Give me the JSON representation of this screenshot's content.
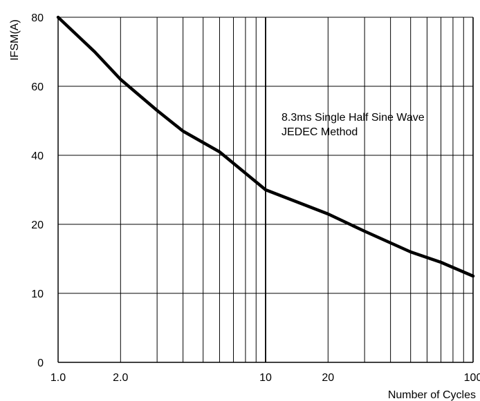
{
  "chart_data": {
    "type": "line",
    "x_scale": "log",
    "y_ticks": [
      {
        "label": "80",
        "value": 80
      },
      {
        "label": "60",
        "value": 60
      },
      {
        "label": "40",
        "value": 40
      },
      {
        "label": "20",
        "value": 20
      },
      {
        "label": "10",
        "value": 10
      },
      {
        "label": "0",
        "value": 0
      }
    ],
    "x_ticks": [
      {
        "label": "1.0",
        "value": 1
      },
      {
        "label": "2.0",
        "value": 2
      },
      {
        "label": "10",
        "value": 10
      },
      {
        "label": "20",
        "value": 20
      },
      {
        "label": "100",
        "value": 100
      }
    ],
    "xlim": [
      1,
      100
    ],
    "grid": true,
    "xlabel": "Number of Cycles",
    "ylabel": "IFSM(A)",
    "annotation": [
      "8.3ms Single Half Sine Wave",
      "JEDEC Method"
    ],
    "series": [
      {
        "color": "#000000",
        "points": [
          {
            "x": 1,
            "y": 80
          },
          {
            "x": 1.5,
            "y": 70
          },
          {
            "x": 2,
            "y": 62
          },
          {
            "x": 3,
            "y": 53
          },
          {
            "x": 4,
            "y": 47
          },
          {
            "x": 6,
            "y": 41
          },
          {
            "x": 10,
            "y": 30
          },
          {
            "x": 20,
            "y": 23
          },
          {
            "x": 30,
            "y": 19
          },
          {
            "x": 50,
            "y": 16
          },
          {
            "x": 70,
            "y": 14.5
          },
          {
            "x": 100,
            "y": 12.5
          }
        ]
      }
    ]
  }
}
